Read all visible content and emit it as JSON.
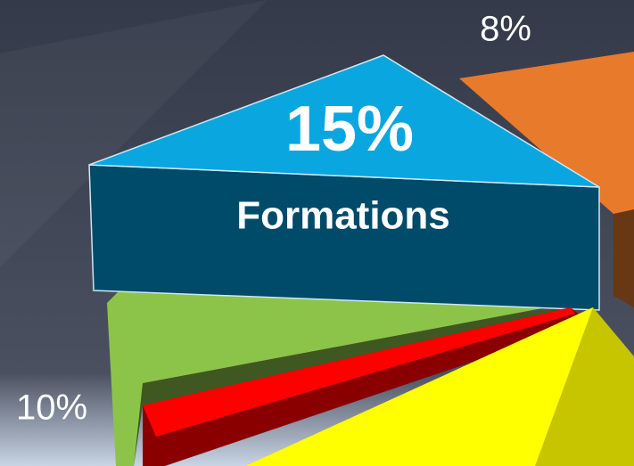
{
  "chart_data": {
    "type": "pie",
    "categories": [
      "Formations",
      null,
      null
    ],
    "values": [
      15,
      8,
      10
    ],
    "value_labels": [
      "15%",
      "8%",
      "10%"
    ],
    "colors": [
      "#0aa6e0",
      "#e87a2c",
      "#8cc44a"
    ]
  }
}
